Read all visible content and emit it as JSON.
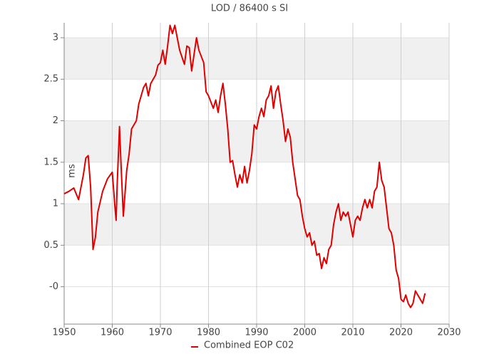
{
  "chart_data": {
    "type": "line",
    "title": "LOD / 86400 s SI",
    "y_label": "ms",
    "x": [
      1950,
      1951,
      1952,
      1953,
      1954,
      1954.5,
      1955,
      1955.5,
      1956,
      1956.5,
      1957,
      1958,
      1959,
      1960,
      1960.5,
      1960.8,
      1961,
      1961.5,
      1961.8,
      1962.3,
      1963,
      1963.5,
      1964,
      1965,
      1965.5,
      1966,
      1966.5,
      1967,
      1967.5,
      1968,
      1969,
      1969.5,
      1970,
      1970.5,
      1971,
      1971.5,
      1972,
      1972.5,
      1973,
      1974,
      1975,
      1975.5,
      1976,
      1976.5,
      1977,
      1977.5,
      1978,
      1979,
      1979.5,
      1980,
      1981,
      1981.5,
      1982,
      1982.5,
      1983,
      1983.5,
      1984,
      1984.5,
      1985,
      1985.5,
      1986,
      1986.5,
      1987,
      1987.5,
      1988,
      1988.5,
      1989,
      1989.5,
      1990,
      1990.5,
      1991,
      1991.5,
      1992,
      1992.5,
      1993,
      1993.5,
      1994,
      1994.5,
      1995,
      1995.5,
      1996,
      1996.5,
      1997,
      1997.5,
      1998,
      1998.5,
      1999,
      1999.5,
      2000,
      2000.5,
      2001,
      2001.5,
      2002,
      2002.5,
      2003,
      2003.5,
      2004,
      2004.5,
      2005,
      2005.5,
      2006,
      2006.5,
      2007,
      2007.5,
      2008,
      2008.5,
      2009,
      2009.5,
      2010,
      2010.5,
      2011,
      2011.5,
      2012,
      2012.5,
      2013,
      2013.5,
      2014,
      2014.5,
      2015,
      2015.5,
      2016,
      2016.5,
      2017,
      2017.5,
      2018,
      2018.5,
      2019,
      2019.5,
      2020,
      2020.5,
      2021,
      2021.5,
      2022,
      2022.5,
      2023,
      2023.5,
      2024,
      2024.5,
      2025
    ],
    "series": [
      {
        "name": "Combined EOP C02",
        "color": "#e00000",
        "values": [
          1.12,
          1.15,
          1.19,
          1.05,
          1.35,
          1.55,
          1.58,
          1.2,
          0.45,
          0.6,
          0.9,
          1.15,
          1.3,
          1.38,
          1.0,
          0.8,
          1.2,
          1.93,
          1.5,
          0.85,
          1.4,
          1.6,
          1.9,
          2.0,
          2.2,
          2.3,
          2.4,
          2.45,
          2.3,
          2.45,
          2.55,
          2.67,
          2.7,
          2.85,
          2.68,
          2.9,
          3.15,
          3.05,
          3.15,
          2.85,
          2.68,
          2.9,
          2.88,
          2.6,
          2.8,
          3.0,
          2.85,
          2.7,
          2.35,
          2.3,
          2.15,
          2.25,
          2.1,
          2.3,
          2.45,
          2.2,
          1.9,
          1.5,
          1.52,
          1.35,
          1.2,
          1.35,
          1.25,
          1.45,
          1.25,
          1.4,
          1.6,
          1.95,
          1.9,
          2.05,
          2.15,
          2.05,
          2.25,
          2.3,
          2.42,
          2.15,
          2.35,
          2.42,
          2.2,
          2.0,
          1.75,
          1.9,
          1.8,
          1.5,
          1.3,
          1.1,
          1.05,
          0.85,
          0.7,
          0.6,
          0.65,
          0.5,
          0.55,
          0.38,
          0.4,
          0.22,
          0.35,
          0.28,
          0.45,
          0.5,
          0.75,
          0.9,
          1.0,
          0.8,
          0.9,
          0.85,
          0.9,
          0.75,
          0.6,
          0.8,
          0.85,
          0.8,
          0.95,
          1.05,
          0.95,
          1.05,
          0.95,
          1.15,
          1.2,
          1.5,
          1.28,
          1.2,
          0.95,
          0.7,
          0.65,
          0.5,
          0.2,
          0.1,
          -0.15,
          -0.18,
          -0.1,
          -0.2,
          -0.25,
          -0.2,
          -0.05,
          -0.1,
          -0.15,
          -0.2,
          -0.08
        ]
      }
    ],
    "xlim": [
      1950,
      2030
    ],
    "xticks": [
      1950,
      1960,
      1970,
      1980,
      1990,
      2000,
      2010,
      2020,
      2030
    ],
    "ylim": [
      -0.45,
      3.18
    ],
    "yticks": [
      {
        "value": 0,
        "label": "-0"
      },
      0.5,
      1,
      1.5,
      2,
      2.5,
      3
    ],
    "grid": true
  }
}
